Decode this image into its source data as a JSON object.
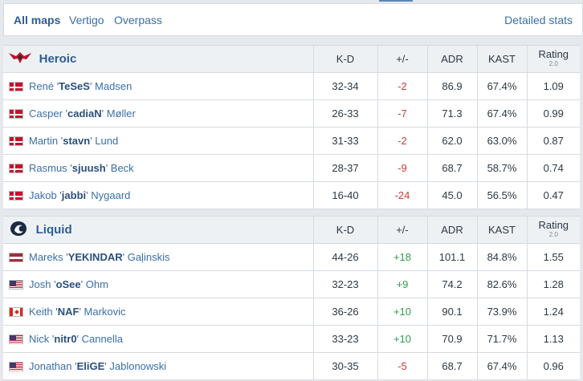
{
  "tabs": [
    {
      "label": "All maps",
      "active": true
    },
    {
      "label": "Vertigo",
      "active": false
    },
    {
      "label": "Overpass",
      "active": false
    }
  ],
  "detailed_stats_label": "Detailed stats",
  "columns": {
    "kd": "K-D",
    "pm": "+/-",
    "adr": "ADR",
    "kast": "KAST",
    "rating": "Rating",
    "rating_sub": "2.0"
  },
  "teams": [
    {
      "name": "Heroic",
      "logo_icon": "heroic-logo-icon",
      "players": [
        {
          "first": "René '",
          "nick": "TeSeS",
          "last": "' Madsen",
          "flag": "dk",
          "kd": "32-34",
          "pm": "-2",
          "adr": "86.9",
          "kast": "67.4%",
          "rating": "1.09"
        },
        {
          "first": "Casper '",
          "nick": "cadiaN",
          "last": "' Møller",
          "flag": "dk",
          "kd": "26-33",
          "pm": "-7",
          "adr": "71.3",
          "kast": "67.4%",
          "rating": "0.99"
        },
        {
          "first": "Martin '",
          "nick": "stavn",
          "last": "' Lund",
          "flag": "dk",
          "kd": "31-33",
          "pm": "-2",
          "adr": "62.0",
          "kast": "63.0%",
          "rating": "0.87"
        },
        {
          "first": "Rasmus '",
          "nick": "sjuush",
          "last": "' Beck",
          "flag": "dk",
          "kd": "28-37",
          "pm": "-9",
          "adr": "68.7",
          "kast": "58.7%",
          "rating": "0.74"
        },
        {
          "first": "Jakob '",
          "nick": "jabbi",
          "last": "' Nygaard",
          "flag": "dk",
          "kd": "16-40",
          "pm": "-24",
          "adr": "45.0",
          "kast": "56.5%",
          "rating": "0.47"
        }
      ]
    },
    {
      "name": "Liquid",
      "logo_icon": "liquid-logo-icon",
      "players": [
        {
          "first": "Mareks '",
          "nick": "YEKINDAR",
          "last": "' Gaļinskis",
          "flag": "lv",
          "kd": "44-26",
          "pm": "+18",
          "adr": "101.1",
          "kast": "84.8%",
          "rating": "1.55"
        },
        {
          "first": "Josh '",
          "nick": "oSee",
          "last": "' Ohm",
          "flag": "us",
          "kd": "32-23",
          "pm": "+9",
          "adr": "74.2",
          "kast": "82.6%",
          "rating": "1.28"
        },
        {
          "first": "Keith '",
          "nick": "NAF",
          "last": "' Markovic",
          "flag": "ca",
          "kd": "36-26",
          "pm": "+10",
          "adr": "90.1",
          "kast": "73.9%",
          "rating": "1.24"
        },
        {
          "first": "Nick '",
          "nick": "nitr0",
          "last": "' Cannella",
          "flag": "us",
          "kd": "33-23",
          "pm": "+10",
          "adr": "70.9",
          "kast": "71.7%",
          "rating": "1.13"
        },
        {
          "first": "Jonathan '",
          "nick": "EliGE",
          "last": "' Jablonowski",
          "flag": "us",
          "kd": "30-35",
          "pm": "-5",
          "adr": "68.7",
          "kast": "67.4%",
          "rating": "0.96"
        }
      ]
    }
  ]
}
